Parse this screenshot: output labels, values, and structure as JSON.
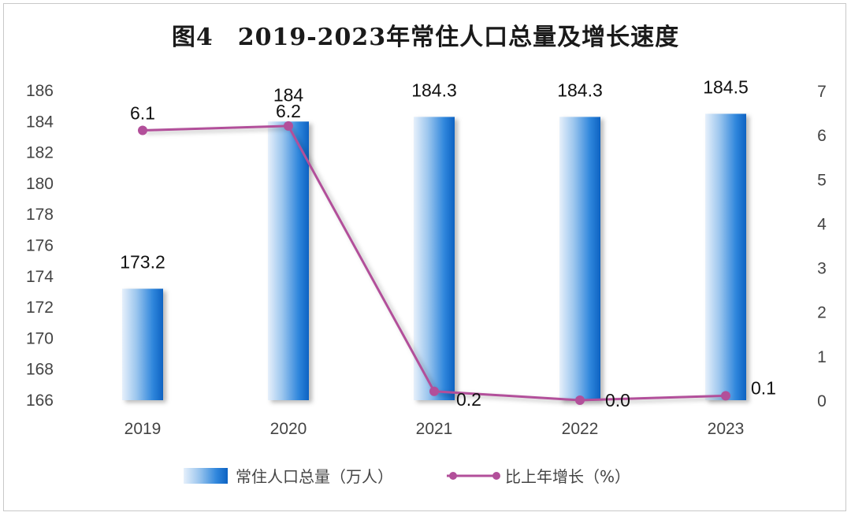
{
  "title": "图4　2019-2023年常住人口总量及增长速度",
  "chart_data": {
    "type": "bar+line",
    "categories": [
      "2019",
      "2020",
      "2021",
      "2022",
      "2023"
    ],
    "series": [
      {
        "name": "常住人口总量（万人）",
        "type": "bar",
        "axis": "left",
        "values": [
          173.2,
          184,
          184.3,
          184.3,
          184.5
        ],
        "labels": [
          "173.2",
          "184",
          "184.3",
          "184.3",
          "184.5"
        ],
        "color": "#1b77d2"
      },
      {
        "name": "比上年增长（%）",
        "type": "line",
        "axis": "right",
        "values": [
          6.1,
          6.2,
          0.2,
          0.0,
          0.1
        ],
        "labels": [
          "6.1",
          "6.2",
          "0.2",
          "0.0",
          "0.1"
        ],
        "color": "#b24f9a"
      }
    ],
    "y_left": {
      "min": 166,
      "max": 186,
      "ticks": [
        "166",
        "168",
        "170",
        "172",
        "174",
        "176",
        "178",
        "180",
        "182",
        "184",
        "186"
      ]
    },
    "y_right": {
      "min": 0,
      "max": 7,
      "ticks": [
        "0",
        "1",
        "2",
        "3",
        "4",
        "5",
        "6",
        "7"
      ]
    },
    "grid": false,
    "legend_position": "bottom"
  }
}
